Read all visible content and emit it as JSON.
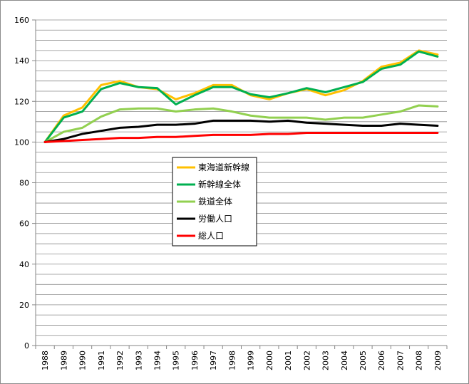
{
  "chart_data": {
    "type": "line",
    "title": "",
    "xlabel": "",
    "ylabel": "",
    "ylim": [
      0,
      160
    ],
    "ytick_step": 5,
    "ytick_labels": [
      "0",
      "20",
      "40",
      "60",
      "80",
      "100",
      "120",
      "140",
      "160"
    ],
    "grid": true,
    "legend": "center",
    "x": [
      "1988",
      "1989",
      "1990",
      "1991",
      "1992",
      "1993",
      "1994",
      "1995",
      "1996",
      "1997",
      "1998",
      "1999",
      "2000",
      "2001",
      "2002",
      "2003",
      "2004",
      "2005",
      "2006",
      "2007",
      "2008",
      "2009"
    ],
    "series": [
      {
        "name": "東海道新幹線",
        "color": "#ffc000",
        "values": [
          100,
          113,
          117,
          128,
          130,
          127,
          126,
          121,
          124,
          128,
          128,
          123,
          121,
          124,
          126,
          123,
          125.5,
          130,
          137,
          139,
          145,
          143
        ]
      },
      {
        "name": "新幹線全体",
        "color": "#00b050",
        "values": [
          100,
          112,
          115,
          126,
          129,
          127,
          126.5,
          118.5,
          123,
          127,
          127,
          123.5,
          122,
          124,
          126.5,
          124.5,
          127,
          129.5,
          136,
          138,
          144.5,
          142
        ]
      },
      {
        "name": "鉄道全体",
        "color": "#92d050",
        "values": [
          100,
          105,
          107,
          112.5,
          116,
          116.5,
          116.5,
          115,
          116,
          116.5,
          115,
          113,
          112,
          112,
          112,
          111,
          112,
          112,
          113.5,
          115,
          118,
          117.5
        ]
      },
      {
        "name": "労働人口",
        "color": "#000000",
        "values": [
          100,
          101.5,
          104,
          105.5,
          107,
          107.5,
          108.5,
          108.5,
          109,
          110.5,
          110.5,
          110.5,
          110,
          110.5,
          109.5,
          109,
          108.5,
          108,
          108,
          109,
          108.5,
          108
        ]
      },
      {
        "name": "総人口",
        "color": "#ff0000",
        "values": [
          100,
          100.5,
          101,
          101.5,
          102,
          102,
          102.5,
          102.5,
          103,
          103.5,
          103.5,
          103.5,
          104,
          104,
          104.5,
          104.5,
          104.5,
          104.5,
          104.5,
          104.5,
          104.5,
          104.5
        ]
      }
    ]
  }
}
